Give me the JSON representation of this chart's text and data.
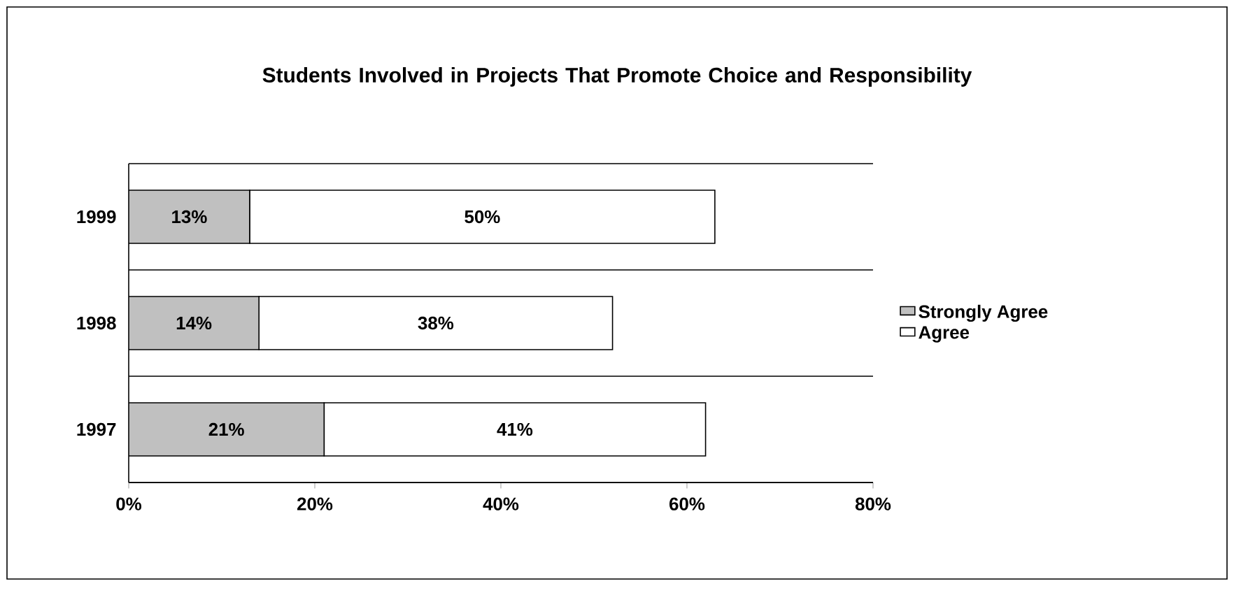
{
  "chart_data": {
    "type": "bar",
    "orientation": "horizontal",
    "stacked": true,
    "title": "Students Involved in Projects That Promote Choice and Responsibility",
    "categories": [
      "1999",
      "1998",
      "1997"
    ],
    "series": [
      {
        "name": "Strongly Agree",
        "color": "#c0c0c0",
        "values": [
          13,
          14,
          21
        ],
        "value_labels": [
          "13%",
          "14%",
          "21%"
        ]
      },
      {
        "name": "Agree",
        "color": "#ffffff",
        "values": [
          50,
          38,
          41
        ],
        "value_labels": [
          "50%",
          "38%",
          "41%"
        ]
      }
    ],
    "xlim": [
      0,
      80
    ],
    "xticks": [
      {
        "value": 0,
        "label": "0%"
      },
      {
        "value": 20,
        "label": "20%"
      },
      {
        "value": 40,
        "label": "40%"
      },
      {
        "value": 60,
        "label": "60%"
      },
      {
        "value": 80,
        "label": "80%"
      }
    ],
    "grid": "y",
    "legend": "right"
  }
}
